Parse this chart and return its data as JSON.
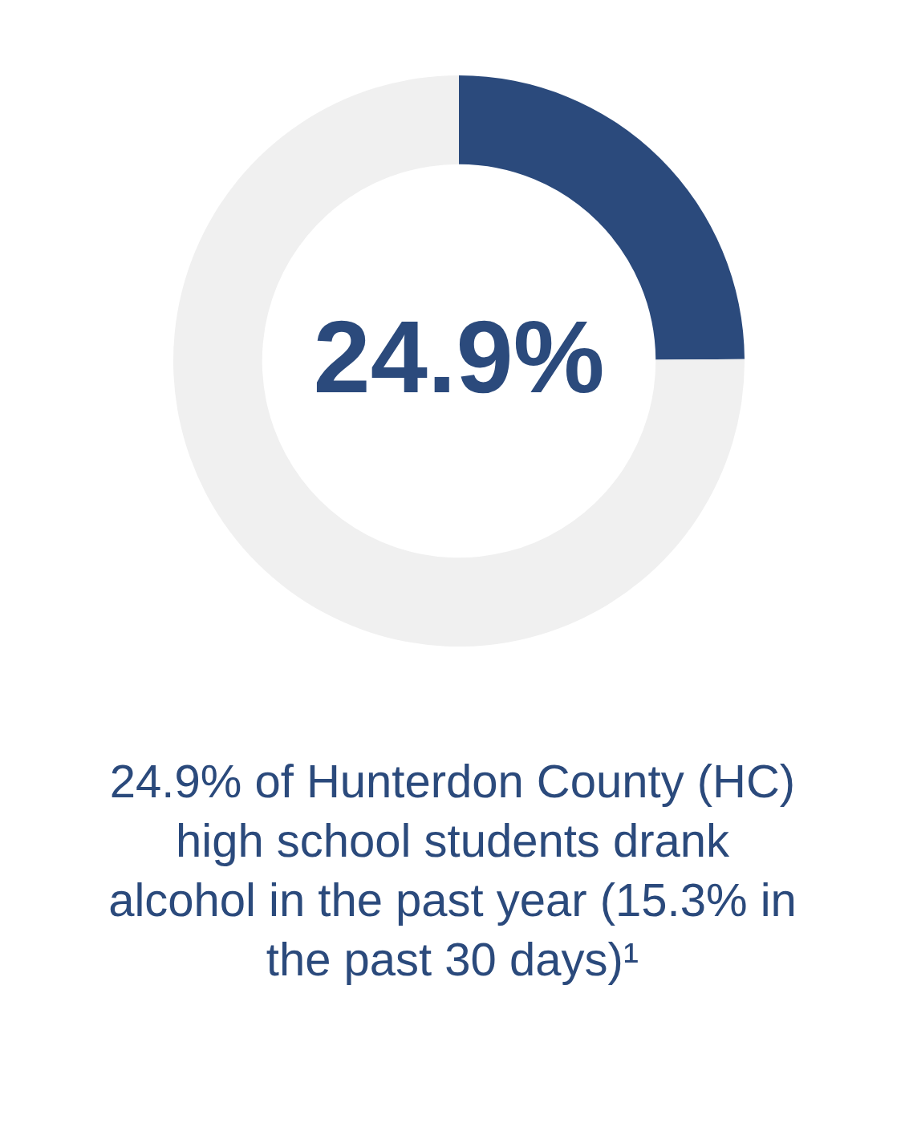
{
  "chart_data": {
    "type": "donut",
    "categories": [
      null,
      null
    ],
    "values": [
      24.9,
      75.1
    ],
    "colors": [
      "#2b4a7c",
      "#f0f0f0"
    ],
    "legend": false,
    "annotations": [
      "24.9%",
      "24.9% of Hunterdon County (HC) high school students drank alcohol in the past year (15.3% in the past 30 days)¹"
    ]
  }
}
